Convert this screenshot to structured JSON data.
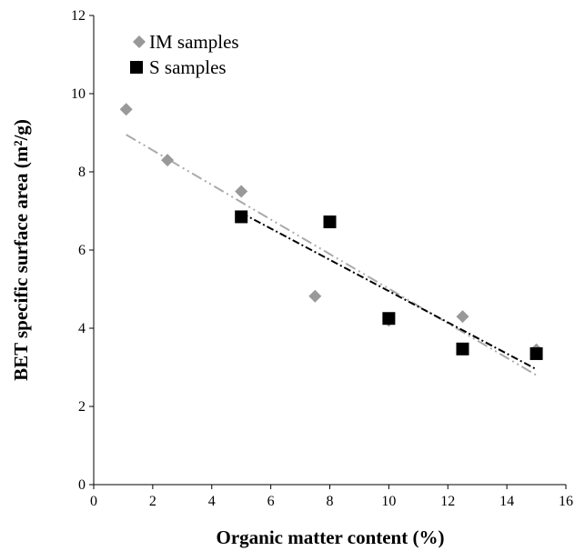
{
  "chart_data": {
    "type": "scatter",
    "xlabel": "Organic matter content (%)",
    "ylabel": "BET specific surface area (m²/g)",
    "xlim": [
      0,
      16
    ],
    "ylim": [
      0,
      12
    ],
    "xticks": [
      0,
      2,
      4,
      6,
      8,
      10,
      12,
      14,
      16
    ],
    "yticks": [
      0,
      2,
      4,
      6,
      8,
      10,
      12
    ],
    "grid": false,
    "legend_position": "top-left",
    "series": [
      {
        "name": "IM samples",
        "marker": "diamond",
        "color": "#999999",
        "points": [
          {
            "x": 1.1,
            "y": 9.6
          },
          {
            "x": 2.5,
            "y": 8.3
          },
          {
            "x": 5.0,
            "y": 7.5
          },
          {
            "x": 7.5,
            "y": 4.82
          },
          {
            "x": 10.0,
            "y": 4.2
          },
          {
            "x": 12.5,
            "y": 4.3
          },
          {
            "x": 15.0,
            "y": 3.45
          }
        ],
        "trendline": {
          "style": "dash-dot-dot",
          "color": "#aaaaaa",
          "from": [
            1.1,
            8.95
          ],
          "to": [
            15.0,
            2.8
          ]
        }
      },
      {
        "name": "S samples",
        "marker": "square",
        "color": "#000000",
        "points": [
          {
            "x": 5.0,
            "y": 6.85
          },
          {
            "x": 8.0,
            "y": 6.72
          },
          {
            "x": 10.0,
            "y": 4.25
          },
          {
            "x": 12.5,
            "y": 3.47
          },
          {
            "x": 15.0,
            "y": 3.35
          }
        ],
        "trendline": {
          "style": "dash-dot",
          "color": "#000000",
          "from": [
            5.0,
            6.95
          ],
          "to": [
            15.0,
            2.95
          ]
        }
      }
    ]
  }
}
